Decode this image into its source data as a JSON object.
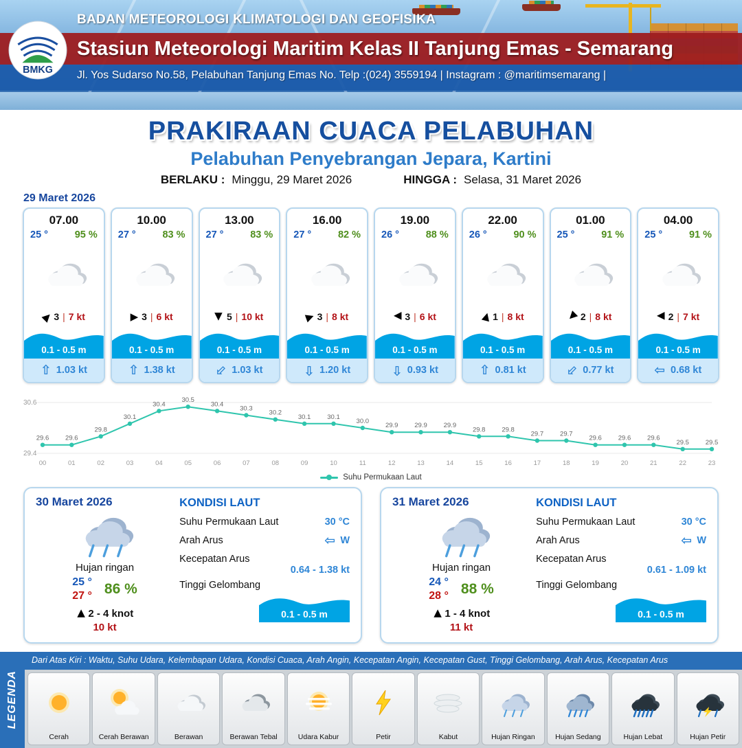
{
  "header": {
    "logo_text": "BMKG",
    "agency": "BADAN METEOROLOGI KLIMATOLOGI DAN GEOFISIKA",
    "station": "Stasiun Meteorologi Maritim Kelas II Tanjung Emas - Semarang",
    "address": "Jl. Yos Sudarso No.58, Pelabuhan Tanjung Emas No. Telp :(024) 3559194 | Instagram : @maritimsemarang |"
  },
  "title": {
    "main": "PRAKIRAAN CUACA PELABUHAN",
    "sub": "Pelabuhan Penyebrangan Jepara, Kartini",
    "valid_from_label": "BERLAKU :",
    "valid_from": "Minggu, 29 Maret 2026",
    "valid_to_label": "HINGGA :",
    "valid_to": "Selasa, 31 Maret 2026"
  },
  "forecast_date": "29 Maret 2026",
  "icons": {
    "wind_arrow": "▶",
    "current_arrow": "⇧"
  },
  "hourly": [
    {
      "time": "07.00",
      "temp": "25 °",
      "rh": "95 %",
      "weather_icon": "cloudy-icon",
      "wind_dir_deg": -45,
      "wind_bft": "3",
      "wind_speed": "7 kt",
      "wave": "0.1 - 0.5 m",
      "current_dir_deg": 0,
      "current": "1.03 kt"
    },
    {
      "time": "10.00",
      "temp": "27 °",
      "rh": "83 %",
      "weather_icon": "cloudy-icon",
      "wind_dir_deg": 0,
      "wind_bft": "3",
      "wind_speed": "6 kt",
      "wave": "0.1 - 0.5 m",
      "current_dir_deg": 0,
      "current": "1.38 kt"
    },
    {
      "time": "13.00",
      "temp": "27 °",
      "rh": "83 %",
      "weather_icon": "cloudy-icon",
      "wind_dir_deg": 90,
      "wind_bft": "5",
      "wind_speed": "10 kt",
      "wave": "0.1 - 0.5 m",
      "current_dir_deg": 225,
      "current": "1.03 kt"
    },
    {
      "time": "16.00",
      "temp": "27 °",
      "rh": "82 %",
      "weather_icon": "cloudy-icon",
      "wind_dir_deg": -20,
      "wind_bft": "3",
      "wind_speed": "8 kt",
      "wave": "0.1 - 0.5 m",
      "current_dir_deg": 180,
      "current": "1.20 kt"
    },
    {
      "time": "19.00",
      "temp": "26 °",
      "rh": "88 %",
      "weather_icon": "cloudy-icon",
      "wind_dir_deg": 180,
      "wind_bft": "3",
      "wind_speed": "6 kt",
      "wave": "0.1 - 0.5 m",
      "current_dir_deg": 180,
      "current": "0.93 kt"
    },
    {
      "time": "22.00",
      "temp": "26 °",
      "rh": "90 %",
      "weather_icon": "cloudy-icon",
      "wind_dir_deg": -75,
      "wind_bft": "1",
      "wind_speed": "8 kt",
      "wave": "0.1 - 0.5 m",
      "current_dir_deg": 0,
      "current": "0.81 kt"
    },
    {
      "time": "01.00",
      "temp": "25 °",
      "rh": "91 %",
      "weather_icon": "cloudy-icon",
      "wind_dir_deg": 135,
      "wind_bft": "2",
      "wind_speed": "8 kt",
      "wave": "0.1 - 0.5 m",
      "current_dir_deg": 225,
      "current": "0.77 kt"
    },
    {
      "time": "04.00",
      "temp": "25 °",
      "rh": "91 %",
      "weather_icon": "cloudy-icon",
      "wind_dir_deg": 180,
      "wind_bft": "2",
      "wind_speed": "7 kt",
      "wave": "0.1 - 0.5 m",
      "current_dir_deg": 270,
      "current": "0.68 kt"
    }
  ],
  "chart_data": {
    "type": "line",
    "title": "",
    "xlabel": "",
    "ylabel": "",
    "x": [
      "00",
      "01",
      "02",
      "03",
      "04",
      "05",
      "06",
      "07",
      "08",
      "09",
      "10",
      "11",
      "12",
      "13",
      "14",
      "15",
      "16",
      "17",
      "18",
      "19",
      "20",
      "21",
      "22",
      "23"
    ],
    "series": [
      {
        "name": "Suhu Permukaan Laut",
        "values": [
          29.6,
          29.6,
          29.8,
          30.1,
          30.4,
          30.5,
          30.4,
          30.3,
          30.2,
          30.1,
          30.1,
          30.0,
          29.9,
          29.9,
          29.9,
          29.8,
          29.8,
          29.7,
          29.7,
          29.6,
          29.6,
          29.6,
          29.5,
          29.5
        ]
      }
    ],
    "ylim": [
      29.4,
      30.6
    ],
    "y_ticks": [
      "30.6",
      "29.4"
    ],
    "line_color": "#2fc5ad",
    "grid": false,
    "legend_position": "bottom"
  },
  "daily": [
    {
      "date": "30 Maret 2026",
      "weather_icon": "light-rain-icon",
      "weather": "Hujan ringan",
      "temp_min": "25 °",
      "temp_max": "27 °",
      "rh": "86 %",
      "wind_dir_deg": -90,
      "wind_range": "2 - 4 knot",
      "gust": "10 kt",
      "sea": {
        "title": "KONDISI LAUT",
        "sst_label": "Suhu Permukaan Laut",
        "sst": "30 °C",
        "dir_label": "Arah Arus",
        "dir_deg": 270,
        "dir": "W",
        "current_label": "Kecepatan Arus",
        "current": "0.64 - 1.38 kt",
        "wave_label": "Tinggi Gelombang",
        "wave": "0.1 - 0.5 m"
      }
    },
    {
      "date": "31 Maret 2026",
      "weather_icon": "light-rain-icon",
      "weather": "Hujan ringan",
      "temp_min": "24 °",
      "temp_max": "28 °",
      "rh": "88 %",
      "wind_dir_deg": -90,
      "wind_range": "1 - 4 knot",
      "gust": "11 kt",
      "sea": {
        "title": "KONDISI LAUT",
        "sst_label": "Suhu Permukaan Laut",
        "sst": "30 °C",
        "dir_label": "Arah Arus",
        "dir_deg": 270,
        "dir": "W",
        "current_label": "Kecepatan Arus",
        "current": "0.61 - 1.09 kt",
        "wave_label": "Tinggi Gelombang",
        "wave": "0.1 - 0.5 m"
      }
    }
  ],
  "legend": {
    "title": "LEGENDA",
    "caption": "Dari Atas Kiri : Waktu, Suhu Udara, Kelembapan Udara, Kondisi Cuaca, Arah Angin, Kecepatan Angin, Kecepatan Gust, Tinggi Gelombang, Arah Arus, Kecepatan Arus",
    "items": [
      {
        "label": "Cerah",
        "icon": "sun-icon"
      },
      {
        "label": "Cerah Berawan",
        "icon": "sun-cloud-icon"
      },
      {
        "label": "Berawan",
        "icon": "cloud-icon"
      },
      {
        "label": "Berawan Tebal",
        "icon": "thick-cloud-icon"
      },
      {
        "label": "Udara Kabur",
        "icon": "haze-icon"
      },
      {
        "label": "Petir",
        "icon": "lightning-icon"
      },
      {
        "label": "Kabut",
        "icon": "fog-icon"
      },
      {
        "label": "Hujan Ringan",
        "icon": "light-rain-icon"
      },
      {
        "label": "Hujan Sedang",
        "icon": "moderate-rain-icon"
      },
      {
        "label": "Hujan Lebat",
        "icon": "heavy-rain-icon"
      },
      {
        "label": "Hujan Petir",
        "icon": "thunderstorm-icon"
      }
    ]
  }
}
